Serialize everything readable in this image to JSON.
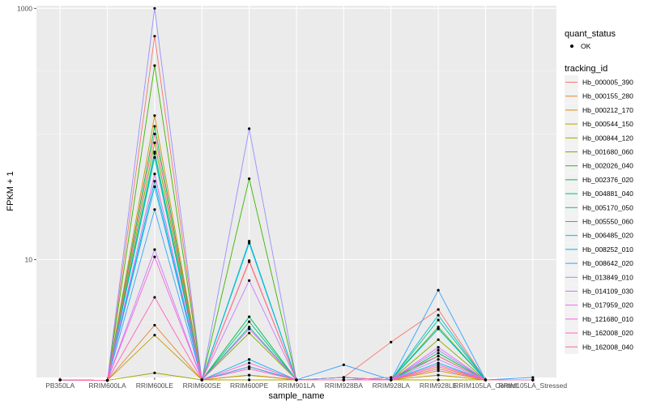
{
  "chart_data": {
    "type": "line",
    "xlabel": "sample_name",
    "ylabel": "FPKM + 1",
    "y_scale": "log10",
    "ylim": [
      1.15,
      1050
    ],
    "y_ticks": [
      10,
      1000
    ],
    "grid": true,
    "legend_placement": "right",
    "categories": [
      "PB350LA",
      "RRIM600LA",
      "RRIM600LE",
      "RRIM600SE",
      "RRIM600PE",
      "RRIM901LA",
      "RRIM928BA",
      "RRIM928LA",
      "RRIM928LE",
      "RRIM105LA_Control",
      "RRIM105LA_Stressed"
    ],
    "shape_legend": {
      "title": "quant_status",
      "entries": [
        {
          "label": "OK"
        }
      ]
    },
    "color_legend_title": "tracking_id",
    "series": [
      {
        "name": "Hb_000005_390",
        "color": "#F8766D",
        "values": [
          1.1,
          1.09,
          600,
          1.1,
          9.6,
          1.1,
          1.15,
          2.2,
          4.0,
          1.1,
          1.1
        ]
      },
      {
        "name": "Hb_000155_280",
        "color": "#EA8331",
        "values": [
          1.1,
          1.09,
          3.0,
          1.1,
          1.4,
          1.1,
          1.1,
          1.1,
          1.4,
          1.1,
          1.1
        ]
      },
      {
        "name": "Hb_000212_170",
        "color": "#D89000",
        "values": [
          1.1,
          1.09,
          140,
          1.1,
          1.2,
          1.1,
          1.1,
          1.1,
          1.3,
          1.1,
          1.1
        ]
      },
      {
        "name": "Hb_000544_150",
        "color": "#C09B00",
        "values": [
          1.1,
          1.09,
          2.5,
          1.1,
          1.2,
          1.1,
          1.1,
          1.1,
          1.2,
          1.1,
          1.1
        ]
      },
      {
        "name": "Hb_000844_120",
        "color": "#A3A500",
        "values": [
          1.1,
          1.09,
          1.25,
          1.1,
          1.1,
          1.1,
          1.1,
          1.1,
          1.1,
          1.1,
          1.1
        ]
      },
      {
        "name": "Hb_001680_060",
        "color": "#7CAE00",
        "values": [
          1.1,
          1.09,
          85,
          1.1,
          2.6,
          1.1,
          1.15,
          1.1,
          2.3,
          1.1,
          1.1
        ]
      },
      {
        "name": "Hb_002026_040",
        "color": "#39B600",
        "values": [
          1.1,
          1.09,
          350,
          1.1,
          44,
          1.1,
          1.15,
          1.1,
          2.9,
          1.1,
          1.1
        ]
      },
      {
        "name": "Hb_002376_020",
        "color": "#00BB4E",
        "values": [
          1.1,
          1.09,
          115,
          1.1,
          3.5,
          1.1,
          1.1,
          1.1,
          1.8,
          1.1,
          1.1
        ]
      },
      {
        "name": "Hb_004881_040",
        "color": "#00BF7D",
        "values": [
          1.1,
          1.09,
          70,
          1.1,
          3.2,
          1.1,
          1.1,
          1.1,
          1.7,
          1.1,
          1.1
        ]
      },
      {
        "name": "Hb_005170_050",
        "color": "#00C1A3",
        "values": [
          1.1,
          1.09,
          72,
          1.1,
          2.9,
          1.1,
          1.1,
          1.1,
          3.3,
          1.1,
          1.1
        ]
      },
      {
        "name": "Hb_005550_060",
        "color": "#00BFC4",
        "values": [
          1.1,
          1.09,
          65,
          1.1,
          14,
          1.1,
          1.1,
          1.1,
          3.6,
          1.1,
          1.1
        ]
      },
      {
        "name": "Hb_006485_020",
        "color": "#00BAE0",
        "values": [
          1.1,
          1.09,
          42,
          1.1,
          13.5,
          1.1,
          1.1,
          1.1,
          2.8,
          1.1,
          1.1
        ]
      },
      {
        "name": "Hb_008252_010",
        "color": "#00B0F6",
        "values": [
          1.1,
          1.09,
          38,
          1.1,
          1.6,
          1.1,
          1.1,
          1.1,
          1.5,
          1.1,
          1.1
        ]
      },
      {
        "name": "Hb_008642_020",
        "color": "#35A2FF",
        "values": [
          1.1,
          1.09,
          25,
          1.1,
          1.4,
          1.1,
          1.45,
          1.1,
          5.7,
          1.1,
          1.15
        ]
      },
      {
        "name": "Hb_013849_010",
        "color": "#9590FF",
        "values": [
          1.1,
          1.09,
          1000,
          1.1,
          110,
          1.1,
          1.15,
          1.1,
          1.9,
          1.1,
          1.1
        ]
      },
      {
        "name": "Hb_014109_030",
        "color": "#C77CFF",
        "values": [
          1.1,
          1.09,
          12,
          1.1,
          6.8,
          1.1,
          1.1,
          1.1,
          1.6,
          1.1,
          1.1
        ]
      },
      {
        "name": "Hb_017959_020",
        "color": "#E76BF3",
        "values": [
          1.1,
          1.09,
          48,
          1.1,
          2.8,
          1.1,
          1.1,
          1.1,
          2.0,
          1.1,
          1.1
        ]
      },
      {
        "name": "Hb_121680_010",
        "color": "#FA62DB",
        "values": [
          1.1,
          1.09,
          10.5,
          1.1,
          1.5,
          1.1,
          1.1,
          1.1,
          1.45,
          1.1,
          1.1
        ]
      },
      {
        "name": "Hb_162008_020",
        "color": "#FF62BC",
        "values": [
          1.1,
          1.09,
          5.0,
          1.1,
          1.35,
          1.1,
          1.1,
          1.1,
          1.35,
          1.1,
          1.1
        ]
      },
      {
        "name": "Hb_162008_040",
        "color": "#FF6C91",
        "values": [
          1.1,
          1.09,
          100,
          1.1,
          9.8,
          1.1,
          1.1,
          1.15,
          1.7,
          1.1,
          1.1
        ]
      }
    ]
  }
}
